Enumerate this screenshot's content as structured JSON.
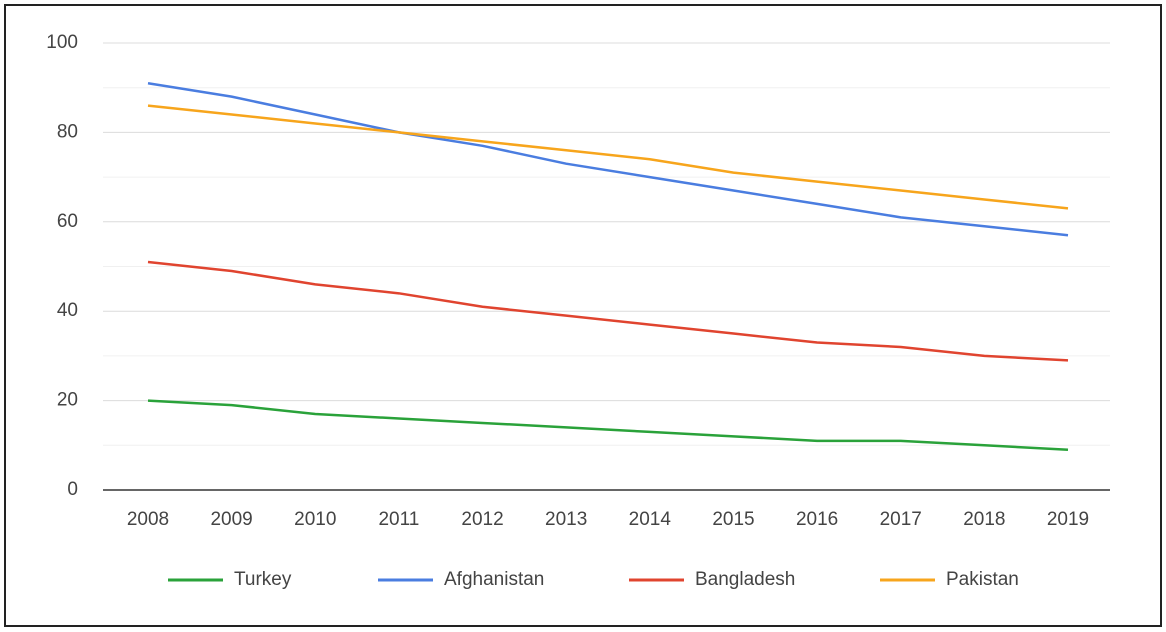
{
  "chart_data": {
    "type": "line",
    "categories": [
      "2008",
      "2009",
      "2010",
      "2011",
      "2012",
      "2013",
      "2014",
      "2015",
      "2016",
      "2017",
      "2018",
      "2019"
    ],
    "series": [
      {
        "name": "Turkey",
        "color": "#2aa23a",
        "values": [
          20,
          19,
          17,
          16,
          15,
          14,
          13,
          12,
          11,
          11,
          10,
          9
        ]
      },
      {
        "name": "Afghanistan",
        "color": "#4a7de0",
        "values": [
          91,
          88,
          84,
          80,
          77,
          73,
          70,
          67,
          64,
          61,
          59,
          57
        ]
      },
      {
        "name": "Bangladesh",
        "color": "#e0442f",
        "values": [
          51,
          49,
          46,
          44,
          41,
          39,
          37,
          35,
          33,
          32,
          30,
          29
        ]
      },
      {
        "name": "Pakistan",
        "color": "#f7a51c",
        "values": [
          86,
          84,
          82,
          80,
          78,
          76,
          74,
          71,
          69,
          67,
          65,
          63
        ]
      }
    ],
    "ylim": [
      0,
      100
    ],
    "yticks": [
      0,
      20,
      40,
      60,
      80,
      100
    ],
    "minor_yticks": [
      10,
      30,
      50,
      70,
      90
    ],
    "grid": true,
    "legend": "bottom"
  }
}
